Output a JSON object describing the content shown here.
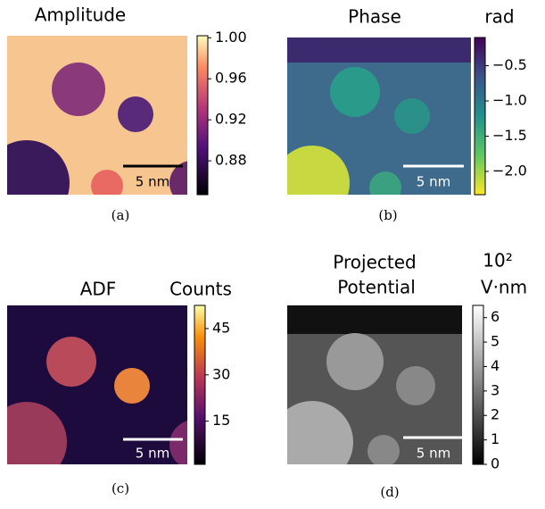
{
  "panels": [
    {
      "title": "Amplitude",
      "caption": "(a)",
      "scale_bar": "5 nm",
      "colorbar": {
        "clim": [
          0.847,
          1.002
        ],
        "ticks": [
          {
            "value": 1,
            "label": "1.00"
          },
          0.96,
          0.92,
          0.88
        ]
      }
    },
    {
      "title": "Phase",
      "unit": "rad",
      "caption": "(b)",
      "scale_bar": "5 nm",
      "colorbar": {
        "clim": [
          -2.33,
          -0.1
        ],
        "ticks": [
          {
            "value": -0.5,
            "label": "−0.5"
          },
          {
            "value": -1,
            "label": "−1.0"
          },
          {
            "value": -1.5,
            "label": "−1.5"
          },
          {
            "value": -2,
            "label": "−2.0"
          }
        ]
      }
    },
    {
      "title": "ADF",
      "unit": "Counts",
      "caption": "(c)",
      "scale_bar": "5 nm",
      "colorbar": {
        "clim": [
          1,
          52.5
        ],
        "ticks": [
          45,
          30,
          15
        ]
      }
    },
    {
      "title": "Projected",
      "title_line2": "Potential",
      "unit": "10²",
      "unit_line2": "V·nm",
      "caption": "(d)",
      "scale_bar": "5 nm",
      "colorbar": {
        "clim": [
          0,
          6.5
        ],
        "ticks": [
          6,
          5,
          4,
          3,
          2,
          1,
          0
        ]
      }
    }
  ]
}
